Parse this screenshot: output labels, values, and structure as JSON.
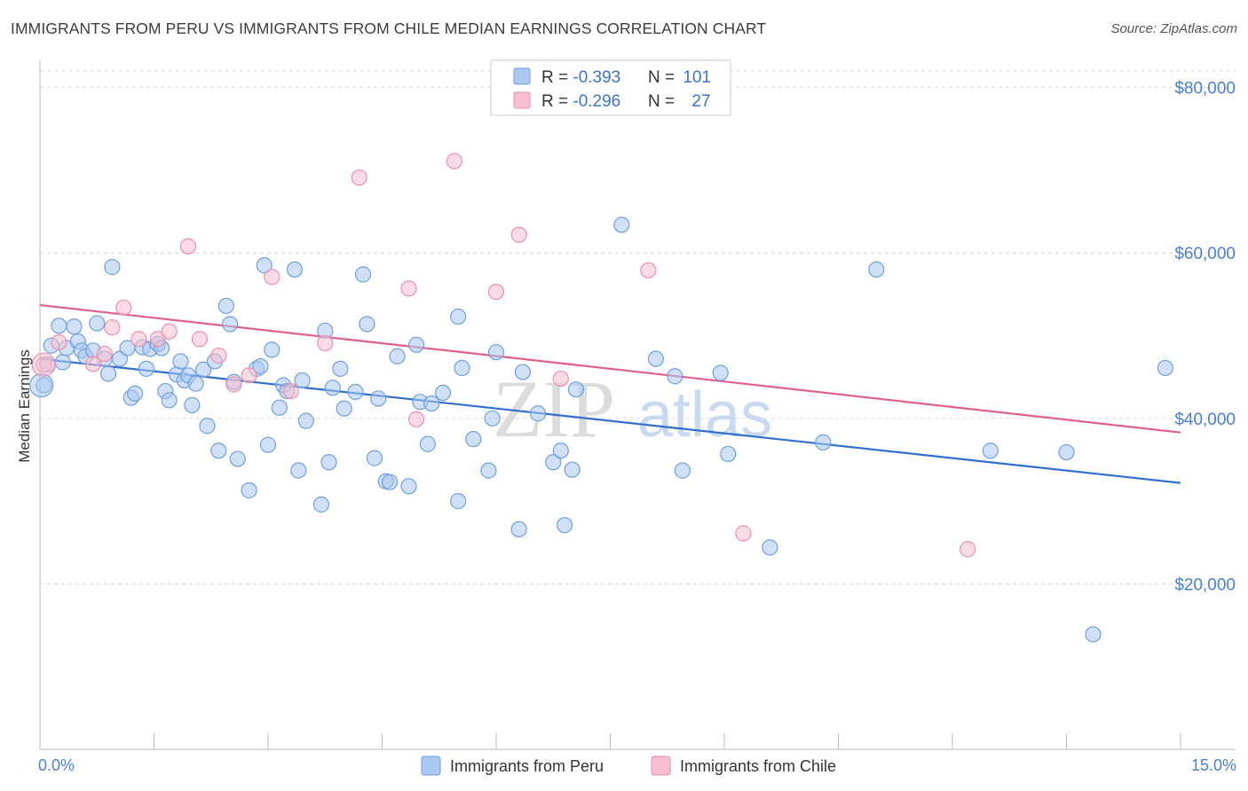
{
  "title": "IMMIGRANTS FROM PERU VS IMMIGRANTS FROM CHILE MEDIAN EARNINGS CORRELATION CHART",
  "source": "Source: ZipAtlas.com",
  "watermark": {
    "zip": "ZIP",
    "atlas": "atlas"
  },
  "colors": {
    "peru_fill": "#aac8f0",
    "peru_stroke": "#6f9fe0",
    "peru_line": "#2f6fd0",
    "chile_fill": "#f7bfd0",
    "chile_stroke": "#ec8fae",
    "chile_line": "#e0608e",
    "tick_text": "#4a7fd0",
    "grid": "#d8d8d8"
  },
  "legend": {
    "rows": [
      {
        "r_label": "R = ",
        "r_value": "-0.393",
        "n_label": "N = ",
        "n_value": "101"
      },
      {
        "r_label": "R = ",
        "r_value": "-0.296",
        "n_label": "N = ",
        "n_value": "27"
      }
    ]
  },
  "chart_data": {
    "type": "scatter",
    "ylabel": "Median Earnings",
    "xlim": [
      0,
      15
    ],
    "ylim": [
      0,
      82000
    ],
    "x_tick_labels": [
      "0.0%",
      "15.0%"
    ],
    "y_ticks": [
      20000,
      40000,
      60000,
      80000
    ],
    "y_tick_labels": [
      "$20,000",
      "$40,000",
      "$60,000",
      "$80,000"
    ],
    "grid": true,
    "series": [
      {
        "name": "Immigrants from Peru",
        "color": "peru",
        "trend": {
          "x": [
            0,
            15
          ],
          "y": [
            47200,
            32200
          ]
        },
        "points": [
          [
            0.05,
            44000
          ],
          [
            0.1,
            46500
          ],
          [
            0.15,
            48800
          ],
          [
            0.25,
            51200
          ],
          [
            0.3,
            46800
          ],
          [
            0.35,
            48500
          ],
          [
            0.45,
            51100
          ],
          [
            0.5,
            49300
          ],
          [
            0.55,
            48200
          ],
          [
            0.6,
            47500
          ],
          [
            0.7,
            48200
          ],
          [
            0.75,
            51500
          ],
          [
            0.85,
            47200
          ],
          [
            0.9,
            45400
          ],
          [
            0.95,
            58300
          ],
          [
            1.05,
            47200
          ],
          [
            1.15,
            48500
          ],
          [
            1.2,
            42500
          ],
          [
            1.25,
            43000
          ],
          [
            1.35,
            48600
          ],
          [
            1.4,
            46000
          ],
          [
            1.45,
            48400
          ],
          [
            1.55,
            49000
          ],
          [
            1.6,
            48500
          ],
          [
            1.65,
            43300
          ],
          [
            1.7,
            42200
          ],
          [
            1.8,
            45300
          ],
          [
            1.85,
            46900
          ],
          [
            1.9,
            44600
          ],
          [
            1.95,
            45200
          ],
          [
            2.0,
            41600
          ],
          [
            2.05,
            44200
          ],
          [
            2.15,
            45900
          ],
          [
            2.2,
            39100
          ],
          [
            2.3,
            46900
          ],
          [
            2.35,
            36100
          ],
          [
            2.45,
            53600
          ],
          [
            2.5,
            51400
          ],
          [
            2.6,
            35100
          ],
          [
            2.55,
            44400
          ],
          [
            2.75,
            31300
          ],
          [
            2.85,
            46000
          ],
          [
            2.9,
            46300
          ],
          [
            2.95,
            58500
          ],
          [
            3.0,
            36800
          ],
          [
            3.05,
            48300
          ],
          [
            3.15,
            41300
          ],
          [
            3.2,
            44000
          ],
          [
            3.25,
            43300
          ],
          [
            3.35,
            58000
          ],
          [
            3.4,
            33700
          ],
          [
            3.45,
            44600
          ],
          [
            3.5,
            39700
          ],
          [
            3.7,
            29600
          ],
          [
            3.75,
            50600
          ],
          [
            3.8,
            34700
          ],
          [
            3.85,
            43700
          ],
          [
            3.95,
            46000
          ],
          [
            4.0,
            41200
          ],
          [
            4.15,
            43200
          ],
          [
            4.3,
            51400
          ],
          [
            4.25,
            57400
          ],
          [
            4.4,
            35200
          ],
          [
            4.45,
            42400
          ],
          [
            4.55,
            32400
          ],
          [
            4.6,
            32300
          ],
          [
            4.7,
            47500
          ],
          [
            4.85,
            31800
          ],
          [
            4.95,
            48900
          ],
          [
            5.0,
            42000
          ],
          [
            5.1,
            36900
          ],
          [
            5.15,
            41800
          ],
          [
            5.3,
            43100
          ],
          [
            5.5,
            52300
          ],
          [
            5.5,
            30000
          ],
          [
            5.55,
            46100
          ],
          [
            5.7,
            37500
          ],
          [
            5.9,
            33700
          ],
          [
            5.95,
            40000
          ],
          [
            6.0,
            48000
          ],
          [
            6.3,
            26600
          ],
          [
            6.35,
            45600
          ],
          [
            6.55,
            40600
          ],
          [
            6.75,
            34700
          ],
          [
            6.85,
            36100
          ],
          [
            6.9,
            27100
          ],
          [
            7.0,
            33800
          ],
          [
            7.05,
            43500
          ],
          [
            7.65,
            63400
          ],
          [
            8.1,
            47200
          ],
          [
            8.35,
            45100
          ],
          [
            8.45,
            33700
          ],
          [
            8.95,
            45500
          ],
          [
            9.05,
            35700
          ],
          [
            9.6,
            24400
          ],
          [
            10.3,
            37100
          ],
          [
            11.0,
            58000
          ],
          [
            12.5,
            36100
          ],
          [
            13.5,
            35900
          ],
          [
            13.85,
            13900
          ],
          [
            14.8,
            46100
          ]
        ]
      },
      {
        "name": "Immigrants from Chile",
        "color": "chile",
        "trend": {
          "x": [
            0,
            15
          ],
          "y": [
            53700,
            38300
          ]
        },
        "points": [
          [
            0.05,
            46500
          ],
          [
            0.25,
            49200
          ],
          [
            0.7,
            46600
          ],
          [
            0.85,
            47800
          ],
          [
            0.95,
            51000
          ],
          [
            1.1,
            53400
          ],
          [
            1.3,
            49600
          ],
          [
            1.55,
            49600
          ],
          [
            1.7,
            50500
          ],
          [
            1.95,
            60800
          ],
          [
            2.1,
            49600
          ],
          [
            2.35,
            47600
          ],
          [
            2.55,
            44100
          ],
          [
            2.75,
            45200
          ],
          [
            3.05,
            57100
          ],
          [
            3.3,
            43300
          ],
          [
            3.75,
            49100
          ],
          [
            4.2,
            69100
          ],
          [
            4.85,
            55700
          ],
          [
            4.95,
            39900
          ],
          [
            5.45,
            71100
          ],
          [
            6.0,
            55300
          ],
          [
            6.3,
            62200
          ],
          [
            6.85,
            44800
          ],
          [
            8.0,
            57900
          ],
          [
            9.25,
            26100
          ],
          [
            12.2,
            24200
          ]
        ]
      }
    ]
  }
}
